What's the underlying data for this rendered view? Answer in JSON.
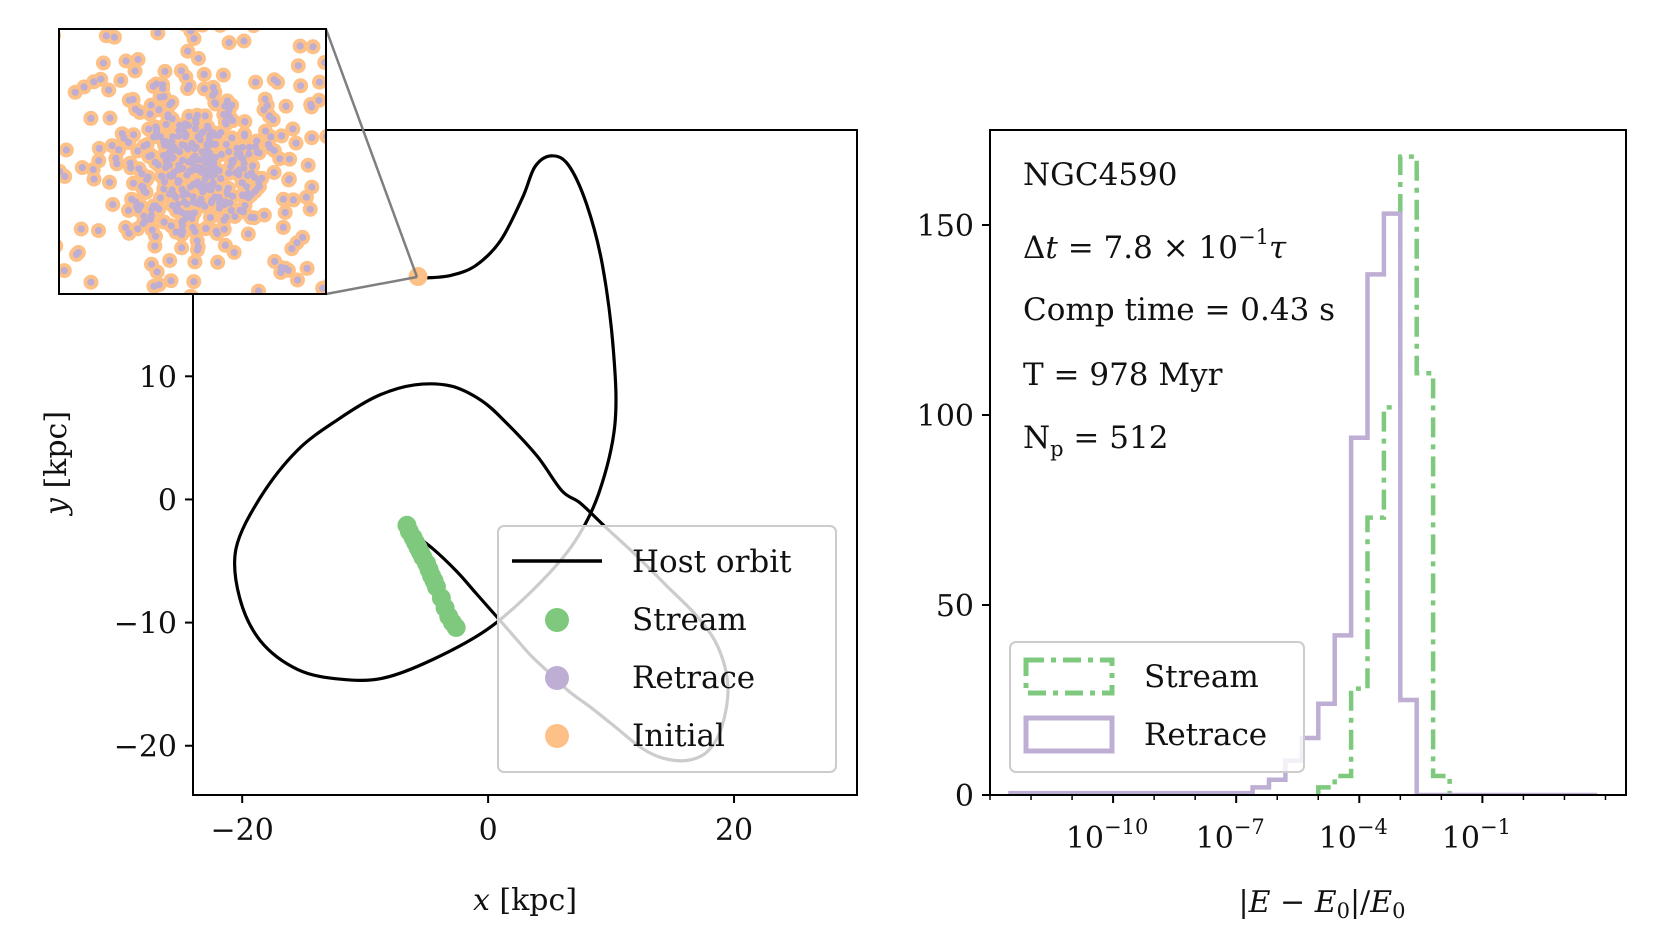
{
  "chart_data": [
    {
      "type": "line",
      "xlabel": "x [kpc]",
      "xlabel_var": "x",
      "xlabel_unit": " [kpc]",
      "ylabel": "y [kpc]",
      "ylabel_var": "y",
      "ylabel_unit": " [kpc]",
      "xlim": [
        -24,
        30
      ],
      "ylim": [
        -24,
        30
      ],
      "xticks": [
        -20,
        0,
        20
      ],
      "xtick_labels": [
        "−20",
        "0",
        "20"
      ],
      "yticks": [
        -20,
        -10,
        0,
        10
      ],
      "ytick_labels": [
        "−20",
        "−10",
        "0",
        "10"
      ],
      "grid": false,
      "legend_position": "lower right",
      "legend": [
        {
          "label": "Host orbit",
          "kind": "line",
          "color": "#000000"
        },
        {
          "label": "Stream",
          "kind": "marker",
          "color": "#7fc97f"
        },
        {
          "label": "Retrace",
          "kind": "marker",
          "color": "#beaed4"
        },
        {
          "label": "Initial",
          "kind": "marker",
          "color": "#fdc086"
        }
      ],
      "series": [
        {
          "name": "Host orbit",
          "color": "#000000",
          "x": [
            -6.5,
            -4.5,
            -2.5,
            -1,
            0.5,
            2,
            3.5,
            5,
            6.6,
            8.5,
            10.5,
            12.5,
            14.2,
            16.1,
            17.8,
            19,
            19.5,
            18.7,
            17,
            14.5,
            12,
            9.5,
            7.5,
            6,
            4,
            1.5,
            -0.5,
            -3,
            -6,
            -9,
            -12.2,
            -15.5,
            -18.5,
            -20.5,
            -20.2,
            -18.5,
            -15.5,
            -12,
            -8.5,
            -4.5,
            0,
            4,
            7,
            9,
            10.3,
            10.2,
            9.3,
            8,
            6.5,
            5.1,
            3.8,
            2.8,
            1,
            -1,
            -3,
            -5,
            -5.7
          ],
          "y": [
            -2.5,
            -4,
            -5.9,
            -7.6,
            -9.3,
            -11,
            -12.7,
            -14.1,
            -15.6,
            -17,
            -18.6,
            -20.2,
            -21,
            -21.2,
            -20.5,
            -18.5,
            -15.2,
            -12,
            -9.5,
            -7,
            -4.5,
            -2.2,
            -0.3,
            0.7,
            3.5,
            6.2,
            8,
            9.2,
            9.3,
            8.4,
            6.5,
            4,
            0.2,
            -4,
            -8,
            -11.5,
            -13.8,
            -14.6,
            -14.5,
            -13,
            -10.5,
            -7,
            -3.5,
            0.5,
            6,
            12,
            19,
            24,
            27.2,
            27.9,
            27,
            24.5,
            21,
            19,
            18.2,
            18,
            18.1
          ]
        },
        {
          "name": "Stream",
          "color": "#7fc97f",
          "x": [
            -6.6,
            -6.4,
            -6.1,
            -5.9,
            -5.7,
            -5.5,
            -5.3,
            -5.0,
            -4.8,
            -4.6,
            -4.4,
            -4.2,
            -3.8,
            -3.5,
            -3.2,
            -2.9,
            -2.6
          ],
          "y": [
            -2.1,
            -2.6,
            -3.1,
            -3.5,
            -3.9,
            -4.3,
            -4.7,
            -5.2,
            -5.7,
            -6.2,
            -6.6,
            -7.1,
            -8.0,
            -8.8,
            -9.5,
            -10.0,
            -10.4
          ]
        },
        {
          "name": "Initial",
          "color": "#fdc086",
          "x": [
            -5.7
          ],
          "y": [
            18.1
          ]
        }
      ]
    },
    {
      "type": "bar",
      "histtype": "step",
      "xlabel": "|E − E₀|/E₀",
      "xscale": "log",
      "xlim_log10": [
        -13,
        2.5
      ],
      "ylim": [
        0,
        175
      ],
      "xticks_log10": [
        -10,
        -7,
        -4,
        -1
      ],
      "yticks": [
        0,
        50,
        100,
        150
      ],
      "grid": false,
      "legend_position": "lower left",
      "annotations": [
        "NGC4590",
        "Δt = 7.8 × 10⁻¹τ",
        "Comp time = 0.43 s",
        "T = 978 Myr",
        "Nₚ = 512"
      ],
      "annotation_parts": {
        "name": "NGC4590",
        "dt": {
          "lhs": "Δ",
          "var": "t",
          "mid": " = 7.8 × 10",
          "exp": "−1",
          "tau": "τ"
        },
        "comp": "Comp time = 0.43 s",
        "T": "T = 978 Myr",
        "Np": {
          "base": "N",
          "sub": "p",
          "rest": " = 512"
        }
      },
      "legend": [
        {
          "label": "Stream",
          "color": "#7fc97f",
          "style": "dash-dot"
        },
        {
          "label": "Retrace",
          "color": "#beaed4",
          "style": "solid"
        }
      ],
      "series": [
        {
          "name": "Stream",
          "color": "#7fc97f",
          "style": "dash-dot",
          "bin_edges_log10": [
            -5.0,
            -4.6,
            -4.2,
            -3.8,
            -3.4,
            -3.0,
            -2.6,
            -2.2,
            -1.8
          ],
          "counts": [
            2,
            5,
            28,
            73,
            102,
            168,
            111,
            5
          ]
        },
        {
          "name": "Retrace",
          "color": "#beaed4",
          "style": "solid",
          "bin_edges_log10": [
            -12.5,
            -6.6,
            -6.2,
            -5.8,
            -5.4,
            -5.0,
            -4.6,
            -4.2,
            -3.8,
            -3.4,
            -3.0,
            -2.6,
            1.8
          ],
          "counts": [
            0.5,
            2,
            4,
            9,
            15,
            24,
            42,
            94,
            137,
            153,
            25,
            0
          ]
        }
      ]
    }
  ],
  "inset": {
    "marker_outer_color": "#fdc086",
    "marker_inner_color": "#beaed4",
    "connector_color": "#7f7f7f"
  }
}
